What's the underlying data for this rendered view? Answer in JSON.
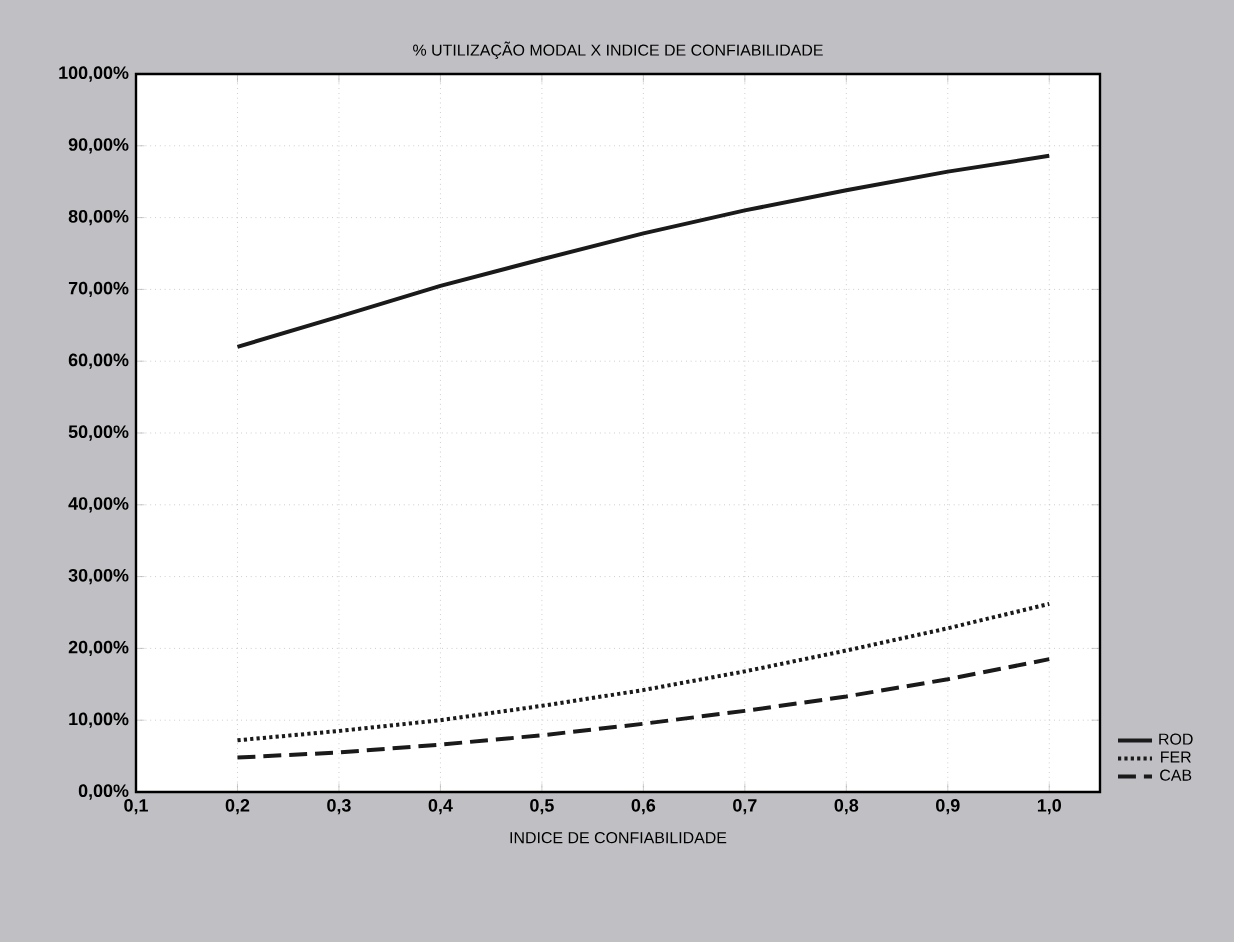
{
  "chart_data": {
    "type": "line",
    "title": "% UTILIZAÇÃO MODAL X  INDICE DE CONFIABILIDADE",
    "xlabel": "INDICE DE CONFIABILIDADE",
    "x": [
      0.2,
      0.3,
      0.4,
      0.5,
      0.6,
      0.7,
      0.8,
      0.9,
      1.0
    ],
    "series": [
      {
        "name": "ROD",
        "color": "#1a1a1a",
        "line_style": "solid",
        "values": [
          62,
          66.2,
          70.5,
          74.2,
          77.8,
          81,
          83.8,
          86.4,
          88.6
        ]
      },
      {
        "name": "FER",
        "color": "#1a1a1a",
        "line_style": "dotted",
        "values": [
          7.2,
          8.5,
          10,
          12,
          14.2,
          16.8,
          19.7,
          22.8,
          26.2
        ]
      },
      {
        "name": "CAB",
        "color": "#1a1a1a",
        "line_style": "dashed",
        "values": [
          4.8,
          5.5,
          6.6,
          7.9,
          9.5,
          11.3,
          13.3,
          15.7,
          18.5
        ]
      }
    ],
    "xlim": [
      0.1,
      1.05
    ],
    "xticks": [
      {
        "value": 0.1,
        "label": "0,1"
      },
      {
        "value": 0.2,
        "label": "0,2"
      },
      {
        "value": 0.3,
        "label": "0,3"
      },
      {
        "value": 0.4,
        "label": "0,4"
      },
      {
        "value": 0.5,
        "label": "0,5"
      },
      {
        "value": 0.6,
        "label": "0,6"
      },
      {
        "value": 0.7,
        "label": "0,7"
      },
      {
        "value": 0.8,
        "label": "0,8"
      },
      {
        "value": 0.9,
        "label": "0,9"
      },
      {
        "value": 1.0,
        "label": "1,0"
      }
    ],
    "ylim": [
      0,
      100
    ],
    "yticks": [
      {
        "value": 0,
        "label": "0,00%"
      },
      {
        "value": 10,
        "label": "10,00%"
      },
      {
        "value": 20,
        "label": "20,00%"
      },
      {
        "value": 30,
        "label": "30,00%"
      },
      {
        "value": 40,
        "label": "40,00%"
      },
      {
        "value": 50,
        "label": "50,00%"
      },
      {
        "value": 60,
        "label": "60,00%"
      },
      {
        "value": 70,
        "label": "70,00%"
      },
      {
        "value": 80,
        "label": "80,00%"
      },
      {
        "value": 90,
        "label": "90,00%"
      },
      {
        "value": 100,
        "label": "100,00%"
      }
    ],
    "grid": true,
    "legend": "bottom right",
    "marker": "none"
  }
}
